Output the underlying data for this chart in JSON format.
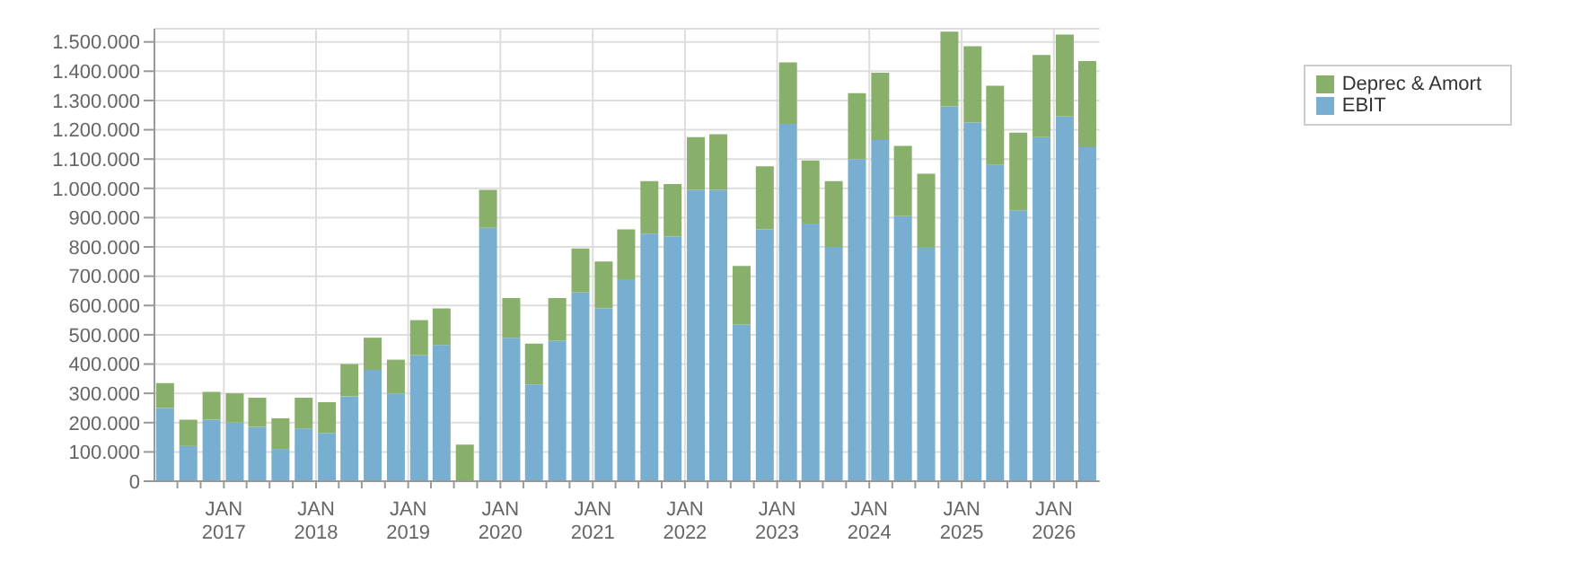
{
  "chart_data": {
    "type": "bar",
    "stacked": true,
    "x": [
      "2016-05-15",
      "2016-08-15",
      "2016-11-15",
      "2017-02-15",
      "2017-05-15",
      "2017-08-15",
      "2017-11-15",
      "2018-02-15",
      "2018-05-15",
      "2018-08-15",
      "2018-11-15",
      "2019-02-15",
      "2019-05-15",
      "2019-08-15",
      "2019-11-15",
      "2020-02-15",
      "2020-05-15",
      "2020-08-15",
      "2020-11-15",
      "2021-02-15",
      "2021-05-15",
      "2021-08-15",
      "2021-11-15",
      "2022-02-15",
      "2022-05-15",
      "2022-08-15",
      "2022-11-15",
      "2023-02-15",
      "2023-05-15",
      "2023-08-15",
      "2023-11-15",
      "2024-02-15",
      "2024-05-15",
      "2024-08-15",
      "2024-11-15",
      "2025-02-15",
      "2025-05-15",
      "2025-08-15",
      "2025-11-15",
      "2026-02-15",
      "2026-05-15"
    ],
    "series": [
      {
        "name": "EBIT",
        "color": "#78afd0",
        "values": [
          250000,
          120000,
          210000,
          200000,
          185000,
          110000,
          180000,
          165000,
          290000,
          380000,
          300000,
          430000,
          465000,
          0,
          865000,
          490000,
          330000,
          480000,
          645000,
          590000,
          690000,
          845000,
          835000,
          995000,
          995000,
          535000,
          860000,
          1220000,
          880000,
          800000,
          1100000,
          1165000,
          905000,
          800000,
          1280000,
          1225000,
          1080000,
          925000,
          1175000,
          1245000,
          1140000
        ]
      },
      {
        "name": "Deprec & Amort",
        "color": "#89b06b",
        "values": [
          85000,
          90000,
          95000,
          100000,
          100000,
          105000,
          105000,
          105000,
          110000,
          110000,
          115000,
          120000,
          125000,
          125000,
          130000,
          135000,
          140000,
          145000,
          150000,
          160000,
          170000,
          180000,
          180000,
          180000,
          190000,
          200000,
          215000,
          210000,
          215000,
          225000,
          225000,
          230000,
          240000,
          250000,
          255000,
          260000,
          270000,
          265000,
          280000,
          280000,
          295000
        ]
      }
    ],
    "xlim": [
      "2016-04-01",
      "2026-07-01"
    ],
    "xticks": [
      {
        "value": "2016-07-01",
        "label": null
      },
      {
        "value": "2016-10-01",
        "label": null
      },
      {
        "value": "2017-01-01",
        "label": "JAN 2017"
      },
      {
        "value": "2017-04-01",
        "label": null
      },
      {
        "value": "2017-07-01",
        "label": null
      },
      {
        "value": "2017-10-01",
        "label": null
      },
      {
        "value": "2018-01-01",
        "label": "JAN 2018"
      },
      {
        "value": "2018-04-01",
        "label": null
      },
      {
        "value": "2018-07-01",
        "label": null
      },
      {
        "value": "2018-10-01",
        "label": null
      },
      {
        "value": "2019-01-01",
        "label": "JAN 2019"
      },
      {
        "value": "2019-04-01",
        "label": null
      },
      {
        "value": "2019-07-01",
        "label": null
      },
      {
        "value": "2019-10-01",
        "label": null
      },
      {
        "value": "2020-01-01",
        "label": "JAN 2020"
      },
      {
        "value": "2020-04-01",
        "label": null
      },
      {
        "value": "2020-07-01",
        "label": null
      },
      {
        "value": "2020-10-01",
        "label": null
      },
      {
        "value": "2021-01-01",
        "label": "JAN 2021"
      },
      {
        "value": "2021-04-01",
        "label": null
      },
      {
        "value": "2021-07-01",
        "label": null
      },
      {
        "value": "2021-10-01",
        "label": null
      },
      {
        "value": "2022-01-01",
        "label": "JAN 2022"
      },
      {
        "value": "2022-04-01",
        "label": null
      },
      {
        "value": "2022-07-01",
        "label": null
      },
      {
        "value": "2022-10-01",
        "label": null
      },
      {
        "value": "2023-01-01",
        "label": "JAN 2023"
      },
      {
        "value": "2023-04-01",
        "label": null
      },
      {
        "value": "2023-07-01",
        "label": null
      },
      {
        "value": "2023-10-01",
        "label": null
      },
      {
        "value": "2024-01-01",
        "label": "JAN 2024"
      },
      {
        "value": "2024-04-01",
        "label": null
      },
      {
        "value": "2024-07-01",
        "label": null
      },
      {
        "value": "2024-10-01",
        "label": null
      },
      {
        "value": "2025-01-01",
        "label": "JAN 2025"
      },
      {
        "value": "2025-04-01",
        "label": null
      },
      {
        "value": "2025-07-01",
        "label": null
      },
      {
        "value": "2025-10-01",
        "label": null
      },
      {
        "value": "2026-01-01",
        "label": "JAN 2026"
      },
      {
        "value": "2026-04-01",
        "label": null
      }
    ],
    "ylim": [
      0,
      1545000
    ],
    "yticks": [
      {
        "value": 0,
        "label": "0"
      },
      {
        "value": 100000,
        "label": "100.000"
      },
      {
        "value": 200000,
        "label": "200.000"
      },
      {
        "value": 300000,
        "label": "300.000"
      },
      {
        "value": 400000,
        "label": "400.000"
      },
      {
        "value": 500000,
        "label": "500.000"
      },
      {
        "value": 600000,
        "label": "600.000"
      },
      {
        "value": 700000,
        "label": "700.000"
      },
      {
        "value": 800000,
        "label": "800.000"
      },
      {
        "value": 900000,
        "label": "900.000"
      },
      {
        "value": 1000000,
        "label": "1.000.000"
      },
      {
        "value": 1100000,
        "label": "1.100.000"
      },
      {
        "value": 1200000,
        "label": "1.200.000"
      },
      {
        "value": 1300000,
        "label": "1.300.000"
      },
      {
        "value": 1400000,
        "label": "1.400.000"
      },
      {
        "value": 1500000,
        "label": "1.500.000"
      }
    ],
    "grid": true,
    "legend": "top right"
  }
}
